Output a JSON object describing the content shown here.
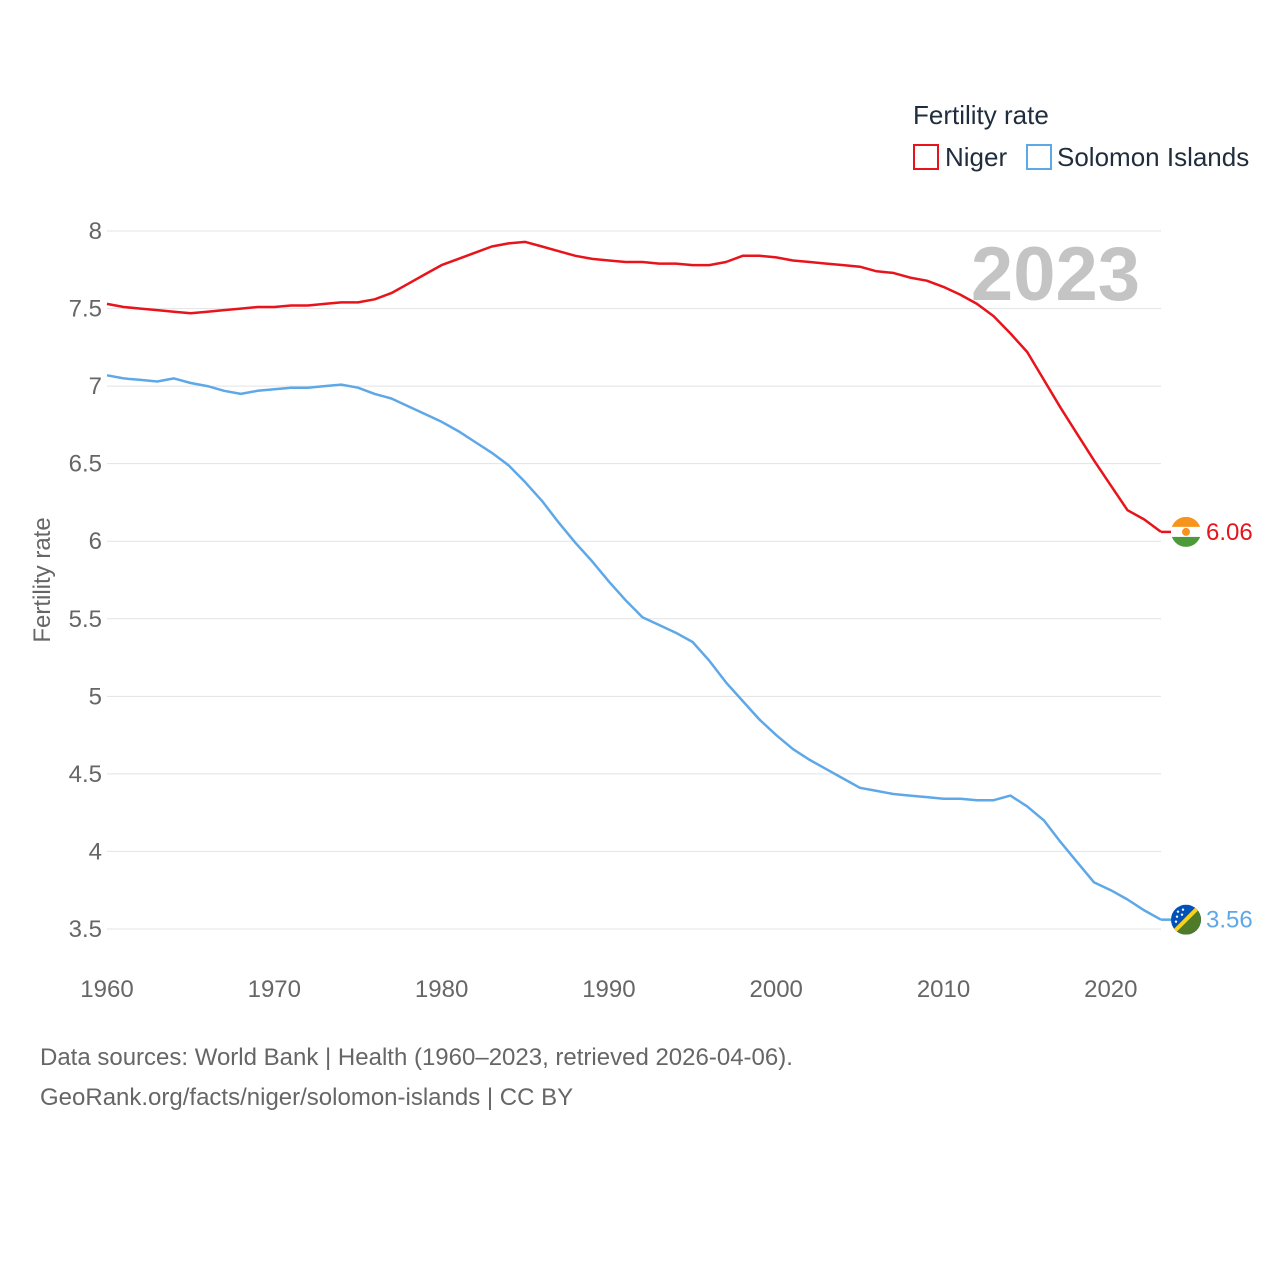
{
  "chart_data": {
    "type": "line",
    "legend_title": "Fertility rate",
    "ylabel": "Fertility rate",
    "year_label": "2023",
    "ylim": [
      3.3,
      8.2
    ],
    "xlim": [
      1960,
      2023
    ],
    "y_ticks": [
      "3.5",
      "4",
      "4.5",
      "5",
      "5.5",
      "6",
      "6.5",
      "7",
      "7.5",
      "8"
    ],
    "x_ticks": [
      "1960",
      "1970",
      "1980",
      "1990",
      "2000",
      "2010",
      "2020"
    ],
    "x": [
      1960,
      1961,
      1962,
      1963,
      1964,
      1965,
      1966,
      1967,
      1968,
      1969,
      1970,
      1971,
      1972,
      1973,
      1974,
      1975,
      1976,
      1977,
      1978,
      1979,
      1980,
      1981,
      1982,
      1983,
      1984,
      1985,
      1986,
      1987,
      1988,
      1989,
      1990,
      1991,
      1992,
      1993,
      1994,
      1995,
      1996,
      1997,
      1998,
      1999,
      2000,
      2001,
      2002,
      2003,
      2004,
      2005,
      2006,
      2007,
      2008,
      2009,
      2010,
      2011,
      2012,
      2013,
      2014,
      2015,
      2016,
      2017,
      2018,
      2019,
      2020,
      2021,
      2022,
      2023
    ],
    "series": [
      {
        "name": "Niger",
        "color": "#e8141b",
        "end_label": "6.06",
        "flag": "niger-flag-icon",
        "values": [
          7.53,
          7.51,
          7.5,
          7.49,
          7.48,
          7.47,
          7.48,
          7.49,
          7.5,
          7.51,
          7.51,
          7.52,
          7.52,
          7.53,
          7.54,
          7.54,
          7.56,
          7.6,
          7.66,
          7.72,
          7.78,
          7.82,
          7.86,
          7.9,
          7.92,
          7.93,
          7.9,
          7.87,
          7.84,
          7.82,
          7.81,
          7.8,
          7.8,
          7.79,
          7.79,
          7.78,
          7.78,
          7.8,
          7.84,
          7.84,
          7.83,
          7.81,
          7.8,
          7.79,
          7.78,
          7.77,
          7.74,
          7.73,
          7.7,
          7.68,
          7.64,
          7.59,
          7.53,
          7.45,
          7.34,
          7.22,
          7.04,
          6.86,
          6.69,
          6.52,
          6.36,
          6.2,
          6.14,
          6.06
        ]
      },
      {
        "name": "Solomon Islands",
        "color": "#5ea8e8",
        "end_label": "3.56",
        "flag": "solomon-islands-flag-icon",
        "values": [
          7.07,
          7.05,
          7.04,
          7.03,
          7.05,
          7.02,
          7.0,
          6.97,
          6.95,
          6.97,
          6.98,
          6.99,
          6.99,
          7.0,
          7.01,
          6.99,
          6.95,
          6.92,
          6.87,
          6.82,
          6.77,
          6.71,
          6.64,
          6.57,
          6.49,
          6.38,
          6.26,
          6.12,
          5.99,
          5.87,
          5.74,
          5.62,
          5.51,
          5.46,
          5.41,
          5.35,
          5.23,
          5.09,
          4.97,
          4.85,
          4.75,
          4.66,
          4.59,
          4.53,
          4.47,
          4.41,
          4.39,
          4.37,
          4.36,
          4.35,
          4.34,
          4.34,
          4.33,
          4.33,
          4.36,
          4.29,
          4.2,
          4.06,
          3.93,
          3.8,
          3.75,
          3.69,
          3.62,
          3.56
        ]
      }
    ]
  },
  "footer": {
    "line1": "Data sources: World Bank | Health (1960–2023, retrieved 2026-04-06).",
    "line2": "GeoRank.org/facts/niger/solomon-islands | CC BY"
  }
}
